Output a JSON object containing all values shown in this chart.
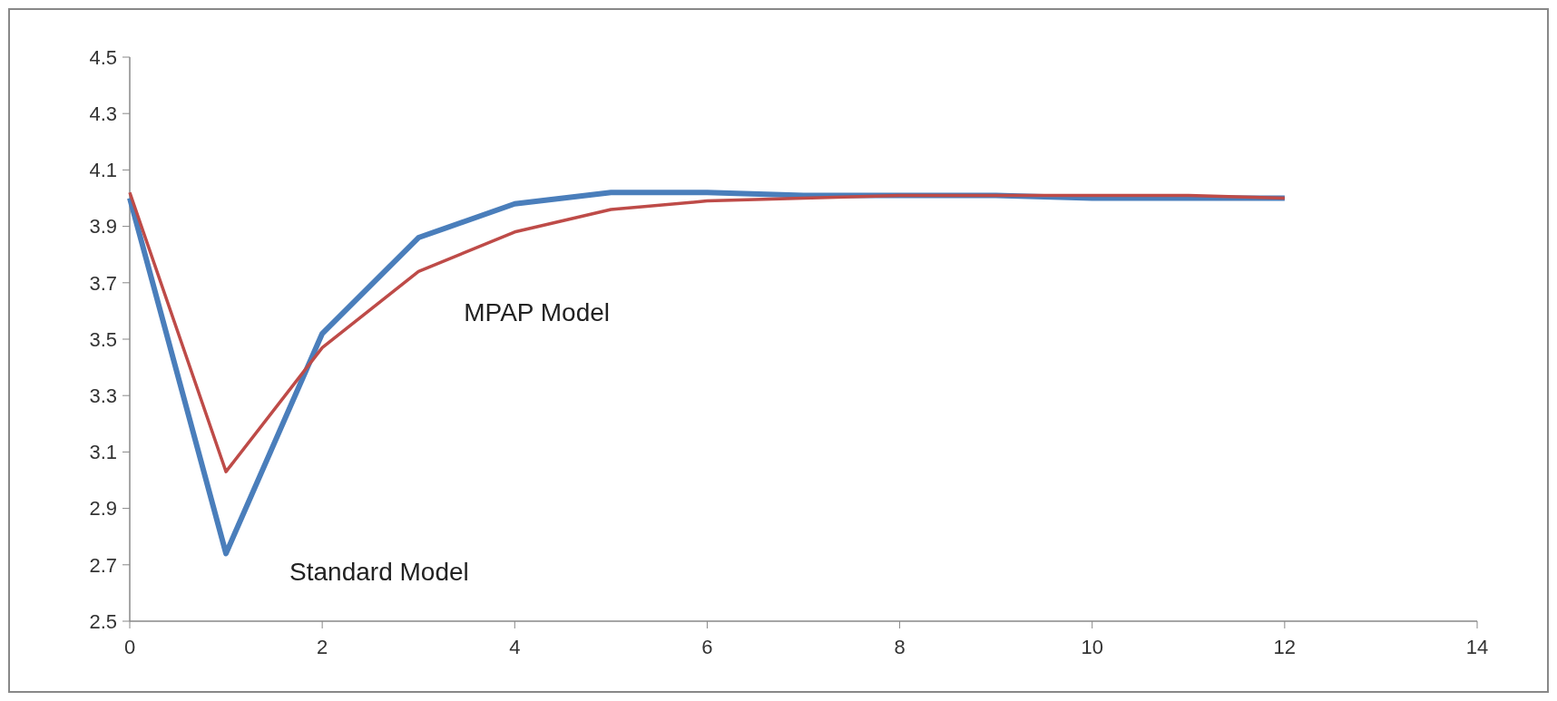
{
  "chart_data": {
    "type": "line",
    "x": [
      0,
      1,
      2,
      3,
      4,
      5,
      6,
      7,
      8,
      9,
      10,
      11,
      12
    ],
    "series": [
      {
        "name": "Standard Model",
        "color": "#4a7ebb",
        "values": [
          4.0,
          2.74,
          3.52,
          3.86,
          3.98,
          4.02,
          4.02,
          4.01,
          4.01,
          4.01,
          4.0,
          4.0,
          4.0
        ]
      },
      {
        "name": "MPAP Model",
        "color": "#be4b48",
        "values": [
          4.02,
          3.03,
          3.47,
          3.74,
          3.88,
          3.96,
          3.99,
          4.0,
          4.01,
          4.01,
          4.01,
          4.01,
          4.0
        ]
      }
    ],
    "xlim": [
      0,
      14
    ],
    "xticks": [
      0,
      2,
      4,
      6,
      8,
      10,
      12,
      14
    ],
    "ylim": [
      2.5,
      4.5
    ],
    "yticks": [
      {
        "value": 2.5,
        "label": "2.5"
      },
      {
        "value": 2.7,
        "label": "2.7"
      },
      {
        "value": 2.9,
        "label": "2.9"
      },
      {
        "value": 3.1,
        "label": "3.1"
      },
      {
        "value": 3.3,
        "label": "3.3"
      },
      {
        "value": 3.5,
        "label": "3.5"
      },
      {
        "value": 3.7,
        "label": "3.7"
      },
      {
        "value": 3.9,
        "label": "3.9"
      },
      {
        "value": 4.1,
        "label": "4.1"
      },
      {
        "value": 4.3,
        "label": "4.3"
      },
      {
        "value": 4.5,
        "label": "4.5"
      }
    ],
    "grid": false,
    "marker": "none",
    "line_style": "solid"
  }
}
